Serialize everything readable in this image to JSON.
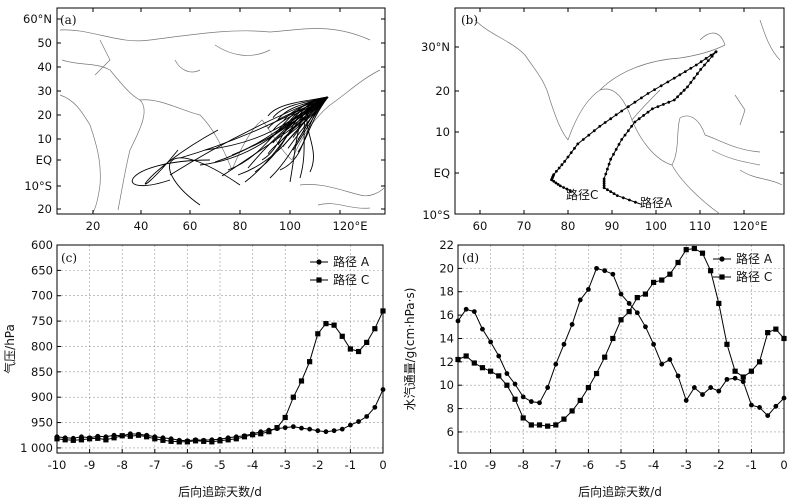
{
  "chart_data": [
    {
      "id": "a",
      "type": "map",
      "panel_label": "(a)",
      "x_ticks": [
        "20",
        "40",
        "60",
        "80",
        "100",
        "120°E"
      ],
      "y_ticks": [
        "60°N",
        "50",
        "40",
        "30",
        "20",
        "10",
        "EQ",
        "10°S",
        "20"
      ],
      "lon_range": [
        5,
        135
      ],
      "lat_range": [
        -22,
        62
      ],
      "description_series": "back trajectories from ~112°E 27°N fanning southwest across Bay of Bengal to Indian Ocean"
    },
    {
      "id": "b",
      "type": "map",
      "panel_label": "(b)",
      "x_ticks": [
        "60",
        "70",
        "80",
        "90",
        "100",
        "110",
        "120°E"
      ],
      "y_ticks": [
        "30°N",
        "20",
        "10",
        "EQ",
        "10°S"
      ],
      "lon_range": [
        53,
        128
      ],
      "lat_range": [
        -10,
        37
      ],
      "routes": [
        {
          "name": "路径C",
          "points": [
            [
              112.5,
              27
            ],
            [
              108,
              24
            ],
            [
              103,
              21
            ],
            [
              97,
              17.5
            ],
            [
              91,
              13.5
            ],
            [
              86,
              10
            ],
            [
              81,
              6
            ],
            [
              78,
              2
            ],
            [
              75.5,
              -1
            ],
            [
              75,
              -2.2
            ],
            [
              77,
              -3.6
            ],
            [
              80,
              -5
            ]
          ]
        },
        {
          "name": "路径A",
          "points": [
            [
              112.5,
              27
            ],
            [
              109,
              23
            ],
            [
              106,
              19
            ],
            [
              103,
              16
            ],
            [
              98,
              14
            ],
            [
              94,
              11
            ],
            [
              91,
              7
            ],
            [
              88.5,
              2.5
            ],
            [
              87,
              -2
            ],
            [
              87,
              -4
            ],
            [
              90,
              -5.8
            ],
            [
              95.5,
              -7.8
            ]
          ]
        }
      ]
    },
    {
      "id": "c",
      "type": "line",
      "panel_label": "(c)",
      "xlabel": "后向追踪天数/d",
      "ylabel": "气压/hPa",
      "x_ticks": [
        "-10",
        "-9",
        "-8",
        "-7",
        "-6",
        "-5",
        "-4",
        "-3",
        "-2",
        "-1",
        "0"
      ],
      "y_ticks": [
        "600",
        "650",
        "700",
        "750",
        "800",
        "850",
        "900",
        "950",
        "1 000"
      ],
      "xlim": [
        -10,
        0
      ],
      "ylim": [
        1010,
        600
      ],
      "legend": [
        "路径 A",
        "路径 C"
      ],
      "series": [
        {
          "name": "路径 A",
          "marker": "circle",
          "x": [
            -10,
            -9.75,
            -9.5,
            -9.25,
            -9,
            -8.75,
            -8.5,
            -8.25,
            -8,
            -7.75,
            -7.5,
            -7.25,
            -7,
            -6.75,
            -6.5,
            -6.25,
            -6,
            -5.75,
            -5.5,
            -5.25,
            -5,
            -4.75,
            -4.5,
            -4.25,
            -4,
            -3.75,
            -3.5,
            -3.25,
            -3,
            -2.75,
            -2.5,
            -2.25,
            -2,
            -1.75,
            -1.5,
            -1.25,
            -1,
            -0.75,
            -0.5,
            -0.25,
            0
          ],
          "values": [
            978,
            980,
            981,
            978,
            980,
            977,
            978,
            975,
            976,
            972,
            973,
            975,
            978,
            980,
            982,
            985,
            986,
            984,
            985,
            984,
            983,
            980,
            978,
            976,
            972,
            968,
            965,
            962,
            960,
            958,
            961,
            963,
            966,
            968,
            966,
            963,
            955,
            948,
            938,
            920,
            885
          ]
        },
        {
          "name": "路径 C",
          "marker": "square",
          "x": [
            -10,
            -9.75,
            -9.5,
            -9.25,
            -9,
            -8.75,
            -8.5,
            -8.25,
            -8,
            -7.75,
            -7.5,
            -7.25,
            -7,
            -6.75,
            -6.5,
            -6.25,
            -6,
            -5.75,
            -5.5,
            -5.25,
            -5,
            -4.75,
            -4.5,
            -4.25,
            -4,
            -3.75,
            -3.5,
            -3.25,
            -3,
            -2.75,
            -2.5,
            -2.25,
            -2,
            -1.75,
            -1.5,
            -1.25,
            -1,
            -0.75,
            -0.5,
            -0.25,
            0
          ],
          "values": [
            982,
            984,
            985,
            984,
            982,
            981,
            984,
            980,
            976,
            977,
            975,
            978,
            982,
            985,
            987,
            988,
            988,
            986,
            987,
            988,
            986,
            984,
            982,
            978,
            974,
            972,
            968,
            960,
            940,
            900,
            868,
            830,
            775,
            755,
            758,
            780,
            805,
            810,
            792,
            765,
            730
          ]
        }
      ]
    },
    {
      "id": "d",
      "type": "line",
      "panel_label": "(d)",
      "xlabel": "后向追踪天数/d",
      "ylabel": "水汽通量/g(cm·hPa·s)",
      "x_ticks": [
        "-10",
        "-9",
        "-8",
        "-7",
        "-6",
        "-5",
        "-4",
        "-3",
        "-2",
        "-1",
        "0"
      ],
      "y_ticks": [
        "6",
        "8",
        "10",
        "12",
        "14",
        "16",
        "18",
        "20",
        "22"
      ],
      "xlim": [
        -10,
        0
      ],
      "ylim": [
        4.2,
        22
      ],
      "legend": [
        "路径 A",
        "路径 C"
      ],
      "series": [
        {
          "name": "路径 A",
          "marker": "circle",
          "x": [
            -10,
            -9.75,
            -9.5,
            -9.25,
            -9,
            -8.75,
            -8.5,
            -8.25,
            -8,
            -7.75,
            -7.5,
            -7.25,
            -7,
            -6.75,
            -6.5,
            -6.25,
            -6,
            -5.75,
            -5.5,
            -5.25,
            -5,
            -4.75,
            -4.5,
            -4.25,
            -4,
            -3.75,
            -3.5,
            -3.25,
            -3,
            -2.75,
            -2.5,
            -2.25,
            -2,
            -1.75,
            -1.5,
            -1.25,
            -1,
            -0.75,
            -0.5,
            -0.25,
            0
          ],
          "values": [
            15.5,
            16.5,
            16.3,
            14.8,
            13.7,
            12.5,
            11,
            10.1,
            9,
            8.6,
            8.5,
            9.8,
            11.8,
            13.5,
            15.2,
            17.3,
            18.2,
            20,
            19.8,
            19.5,
            17.8,
            17,
            16.2,
            15,
            13.5,
            11.8,
            12.2,
            10.8,
            8.7,
            9.8,
            9.2,
            9.8,
            9.5,
            10.5,
            10.6,
            10.3,
            8.3,
            8.1,
            7.4,
            8.2,
            8.9
          ]
        },
        {
          "name": "路径 C",
          "marker": "square",
          "x": [
            -10,
            -9.75,
            -9.5,
            -9.25,
            -9,
            -8.75,
            -8.5,
            -8.25,
            -8,
            -7.75,
            -7.5,
            -7.25,
            -7,
            -6.75,
            -6.5,
            -6.25,
            -6,
            -5.75,
            -5.5,
            -5.25,
            -5,
            -4.75,
            -4.5,
            -4.25,
            -4,
            -3.75,
            -3.5,
            -3.25,
            -3,
            -2.75,
            -2.5,
            -2.25,
            -2,
            -1.75,
            -1.5,
            -1.25,
            -1,
            -0.75,
            -0.5,
            -0.25,
            0
          ],
          "values": [
            12.2,
            12.5,
            11.9,
            11.5,
            11.2,
            10.8,
            10,
            8.8,
            7.2,
            6.6,
            6.6,
            6.5,
            6.6,
            7.1,
            7.8,
            8.7,
            9.8,
            11,
            12.4,
            14,
            15.6,
            16.3,
            17.5,
            17.8,
            18.8,
            19,
            19.5,
            20.5,
            21.6,
            21.7,
            21.3,
            19.8,
            17,
            13.5,
            11.2,
            10.7,
            11.2,
            12,
            14.5,
            14.8,
            14
          ]
        }
      ]
    }
  ]
}
